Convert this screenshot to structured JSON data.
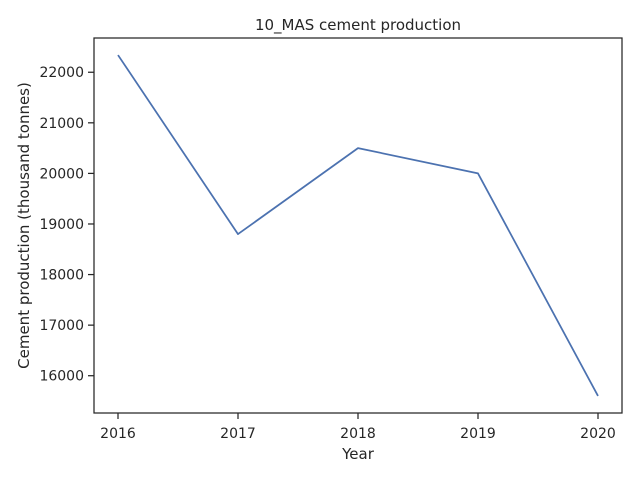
{
  "chart_data": {
    "type": "line",
    "title": "10_MAS cement production",
    "xlabel": "Year",
    "ylabel": "Cement production (thousand tonnes)",
    "x": [
      2016,
      2017,
      2018,
      2019,
      2020
    ],
    "series": [
      {
        "values": [
          22340,
          18800,
          20500,
          20000,
          15600
        ],
        "color": "#4c72b0"
      }
    ],
    "xticks": [
      "2016",
      "2017",
      "2018",
      "2019",
      "2020"
    ],
    "yticks": [
      16000,
      17000,
      18000,
      19000,
      20000,
      21000,
      22000
    ],
    "ylim": [
      15263,
      22677
    ],
    "xlim": [
      2015.8,
      2020.2
    ],
    "grid": false
  }
}
